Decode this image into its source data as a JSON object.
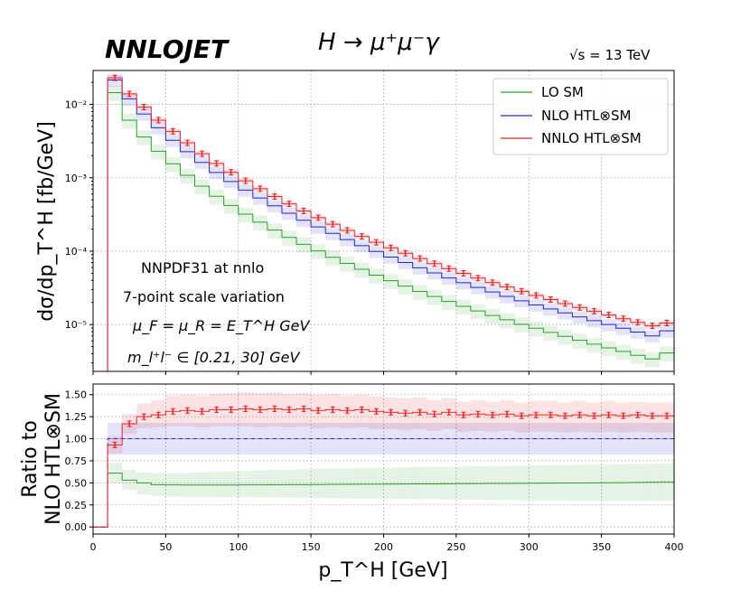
{
  "header": {
    "brand": "NNLOJET",
    "process": "H → μ⁺μ⁻γ",
    "energy": "√s = 13 TeV"
  },
  "colors": {
    "lo": "#2ca02c",
    "nlo": "#2424d6",
    "nnlo": "#e8232a"
  },
  "chart_data": [
    {
      "type": "line",
      "panel": "main",
      "scale": "log",
      "ylabel": "dσ/dp_T^H [fb/GeV]",
      "xlim": [
        0,
        400
      ],
      "ylim": [
        2.3e-06,
        0.029
      ],
      "xticks": [
        0,
        50,
        100,
        150,
        200,
        250,
        300,
        350,
        400
      ],
      "yticks": [
        {
          "value": 1e-05,
          "label": "10⁻⁵"
        },
        {
          "value": 0.0001,
          "label": "10⁻⁴"
        },
        {
          "value": 0.001,
          "label": "10⁻³"
        },
        {
          "value": 0.01,
          "label": "10⁻²"
        }
      ],
      "legend": {
        "position": "top-right",
        "entries": [
          "LO SM",
          "NLO HTL⊗SM",
          "NNLO HTL⊗SM"
        ]
      },
      "annotations": [
        "NNPDF31 at nnlo",
        "7-point scale variation",
        "μ_F = μ_R = E_T^H GeV",
        "m_l⁺l⁻ ∈ [0.21, 30] GeV"
      ],
      "bin_edges": [
        0,
        10,
        20,
        30,
        40,
        50,
        60,
        70,
        80,
        90,
        100,
        110,
        120,
        130,
        140,
        150,
        160,
        170,
        180,
        190,
        200,
        210,
        220,
        230,
        240,
        250,
        260,
        270,
        280,
        290,
        300,
        310,
        320,
        330,
        340,
        350,
        360,
        370,
        380,
        390,
        400
      ],
      "series": [
        {
          "name": "LO SM",
          "values": [
            0,
            0.0145,
            0.0061,
            0.0036,
            0.0023,
            0.00155,
            0.00108,
            0.00077,
            0.00056,
            0.00042,
            0.00032,
            0.000248,
            0.000194,
            0.000154,
            0.000124,
            0.000101,
            8.25e-05,
            6.82e-05,
            5.66e-05,
            4.72e-05,
            3.96e-05,
            3.34e-05,
            2.83e-05,
            2.41e-05,
            2.06e-05,
            1.77e-05,
            1.53e-05,
            1.33e-05,
            1.16e-05,
            1.01e-05,
            8.9e-06,
            7.8e-06,
            6.9e-06,
            6.1e-06,
            5.4e-06,
            4.8e-06,
            4.3e-06,
            3.8e-06,
            3.4e-06,
            4.1e-06
          ],
          "band_low": 0.77,
          "band_high": 1.23
        },
        {
          "name": "NLO HTL⊗SM",
          "values": [
            0,
            0.0215,
            0.0119,
            0.0074,
            0.0048,
            0.00325,
            0.00227,
            0.00162,
            0.00118,
            0.00089,
            0.00068,
            0.00053,
            0.000415,
            0.000329,
            0.000264,
            0.000214,
            0.000175,
            0.000144,
            0.000119,
            9.91e-05,
            8.31e-05,
            7e-05,
            5.93e-05,
            5.05e-05,
            4.32e-05,
            3.71e-05,
            3.2e-05,
            2.78e-05,
            2.42e-05,
            2.11e-05,
            1.85e-05,
            1.63e-05,
            1.44e-05,
            1.27e-05,
            1.13e-05,
            1e-05,
            8.9e-06,
            7.9e-06,
            7e-06,
            8.2e-06
          ],
          "band_low": 0.81,
          "band_high": 1.19
        },
        {
          "name": "NNLO HTL⊗SM",
          "values": [
            0,
            0.023,
            0.0139,
            0.0092,
            0.0061,
            0.0043,
            0.003,
            0.00213,
            0.00157,
            0.00119,
            0.00091,
            0.00071,
            0.000556,
            0.000441,
            0.000353,
            0.000286,
            0.000233,
            0.000192,
            0.000159,
            0.000132,
            0.000111,
            9.37e-05,
            7.94e-05,
            6.76e-05,
            5.79e-05,
            4.98e-05,
            4.3e-05,
            3.73e-05,
            3.25e-05,
            2.84e-05,
            2.49e-05,
            2.19e-05,
            1.93e-05,
            1.71e-05,
            1.52e-05,
            1.35e-05,
            1.2e-05,
            1.07e-05,
            9.6e-06,
            1.05e-05
          ],
          "band_low": 0.92,
          "band_high": 1.08
        }
      ]
    },
    {
      "type": "line",
      "panel": "ratio",
      "ylabel": "Ratio to\nNLO HTL⊗SM",
      "xlabel": "p_T^H [GeV]",
      "xlim": [
        0,
        400
      ],
      "ylim": [
        -0.08,
        1.62
      ],
      "xticks": [
        0,
        50,
        100,
        150,
        200,
        250,
        300,
        350,
        400
      ],
      "yticks": [
        0.0,
        0.25,
        0.5,
        0.75,
        1.0,
        1.25,
        1.5
      ],
      "bin_edges": [
        0,
        10,
        20,
        30,
        40,
        50,
        60,
        70,
        80,
        90,
        100,
        110,
        120,
        130,
        140,
        150,
        160,
        170,
        180,
        190,
        200,
        210,
        220,
        230,
        240,
        250,
        260,
        270,
        280,
        290,
        300,
        310,
        320,
        330,
        340,
        350,
        360,
        370,
        380,
        390,
        400
      ],
      "series": [
        {
          "name": "LO SM",
          "values": [
            0,
            0.61,
            0.53,
            0.5,
            0.48,
            0.477,
            0.475,
            0.475,
            0.476,
            0.476,
            0.477,
            0.477,
            0.478,
            0.479,
            0.48,
            0.481,
            0.482,
            0.483,
            0.484,
            0.485,
            0.486,
            0.487,
            0.488,
            0.489,
            0.49,
            0.491,
            0.492,
            0.493,
            0.494,
            0.495,
            0.496,
            0.497,
            0.498,
            0.499,
            0.5,
            0.501,
            0.503,
            0.505,
            0.507,
            0.51
          ],
          "band_low": [
            0,
            0.5,
            0.42,
            0.37,
            0.35,
            0.345,
            0.34,
            0.34,
            0.338,
            0.336,
            0.335,
            0.333,
            0.332,
            0.33,
            0.328,
            0.327,
            0.325,
            0.323,
            0.322,
            0.32,
            0.318,
            0.317,
            0.315,
            0.314,
            0.312,
            0.31,
            0.309,
            0.307,
            0.306,
            0.305,
            0.304,
            0.303,
            0.302,
            0.301,
            0.3,
            0.3,
            0.3,
            0.3,
            0.3,
            0.3
          ],
          "band_high": [
            0,
            0.73,
            0.65,
            0.62,
            0.61,
            0.612,
            0.615,
            0.62,
            0.625,
            0.63,
            0.635,
            0.64,
            0.645,
            0.65,
            0.655,
            0.66,
            0.662,
            0.665,
            0.668,
            0.67,
            0.672,
            0.675,
            0.678,
            0.68,
            0.682,
            0.685,
            0.688,
            0.69,
            0.692,
            0.695,
            0.698,
            0.7,
            0.702,
            0.705,
            0.708,
            0.71,
            0.712,
            0.715,
            0.718,
            0.72
          ]
        },
        {
          "name": "NLO HTL⊗SM",
          "values": [
            0,
            1,
            1,
            1,
            1,
            1,
            1,
            1,
            1,
            1,
            1,
            1,
            1,
            1,
            1,
            1,
            1,
            1,
            1,
            1,
            1,
            1,
            1,
            1,
            1,
            1,
            1,
            1,
            1,
            1,
            1,
            1,
            1,
            1,
            1,
            1,
            1,
            1,
            1,
            1
          ],
          "band_low": [
            0,
            0.82,
            0.82,
            0.82,
            0.82,
            0.82,
            0.82,
            0.82,
            0.82,
            0.82,
            0.82,
            0.82,
            0.82,
            0.82,
            0.82,
            0.82,
            0.82,
            0.82,
            0.82,
            0.82,
            0.82,
            0.82,
            0.82,
            0.82,
            0.82,
            0.82,
            0.82,
            0.82,
            0.82,
            0.82,
            0.82,
            0.82,
            0.82,
            0.82,
            0.82,
            0.82,
            0.82,
            0.82,
            0.82,
            0.82
          ],
          "band_high": [
            0,
            1.18,
            1.18,
            1.18,
            1.18,
            1.18,
            1.18,
            1.18,
            1.18,
            1.18,
            1.18,
            1.18,
            1.18,
            1.18,
            1.18,
            1.18,
            1.18,
            1.18,
            1.18,
            1.18,
            1.18,
            1.18,
            1.18,
            1.18,
            1.18,
            1.18,
            1.18,
            1.18,
            1.18,
            1.18,
            1.18,
            1.18,
            1.18,
            1.18,
            1.18,
            1.18,
            1.18,
            1.18,
            1.18,
            1.18
          ]
        },
        {
          "name": "NNLO HTL⊗SM",
          "values": [
            0,
            0.93,
            1.17,
            1.25,
            1.27,
            1.31,
            1.32,
            1.31,
            1.33,
            1.33,
            1.34,
            1.33,
            1.34,
            1.33,
            1.34,
            1.32,
            1.33,
            1.32,
            1.33,
            1.31,
            1.3,
            1.29,
            1.3,
            1.28,
            1.3,
            1.27,
            1.28,
            1.27,
            1.28,
            1.26,
            1.27,
            1.27,
            1.26,
            1.27,
            1.26,
            1.27,
            1.26,
            1.27,
            1.26,
            1.26
          ],
          "band_low": [
            0,
            0.83,
            1.06,
            1.12,
            1.13,
            1.14,
            1.14,
            1.13,
            1.14,
            1.14,
            1.14,
            1.13,
            1.14,
            1.13,
            1.14,
            1.12,
            1.13,
            1.12,
            1.13,
            1.11,
            1.11,
            1.1,
            1.11,
            1.09,
            1.11,
            1.08,
            1.09,
            1.08,
            1.09,
            1.07,
            1.08,
            1.08,
            1.07,
            1.08,
            1.07,
            1.08,
            1.07,
            1.08,
            1.07,
            1.07
          ],
          "band_high": [
            0,
            1.03,
            1.28,
            1.4,
            1.44,
            1.49,
            1.5,
            1.49,
            1.51,
            1.52,
            1.53,
            1.52,
            1.53,
            1.51,
            1.52,
            1.5,
            1.51,
            1.49,
            1.5,
            1.48,
            1.47,
            1.46,
            1.47,
            1.44,
            1.46,
            1.42,
            1.44,
            1.42,
            1.44,
            1.41,
            1.43,
            1.43,
            1.41,
            1.43,
            1.41,
            1.43,
            1.41,
            1.42,
            1.41,
            1.41
          ]
        }
      ]
    }
  ]
}
